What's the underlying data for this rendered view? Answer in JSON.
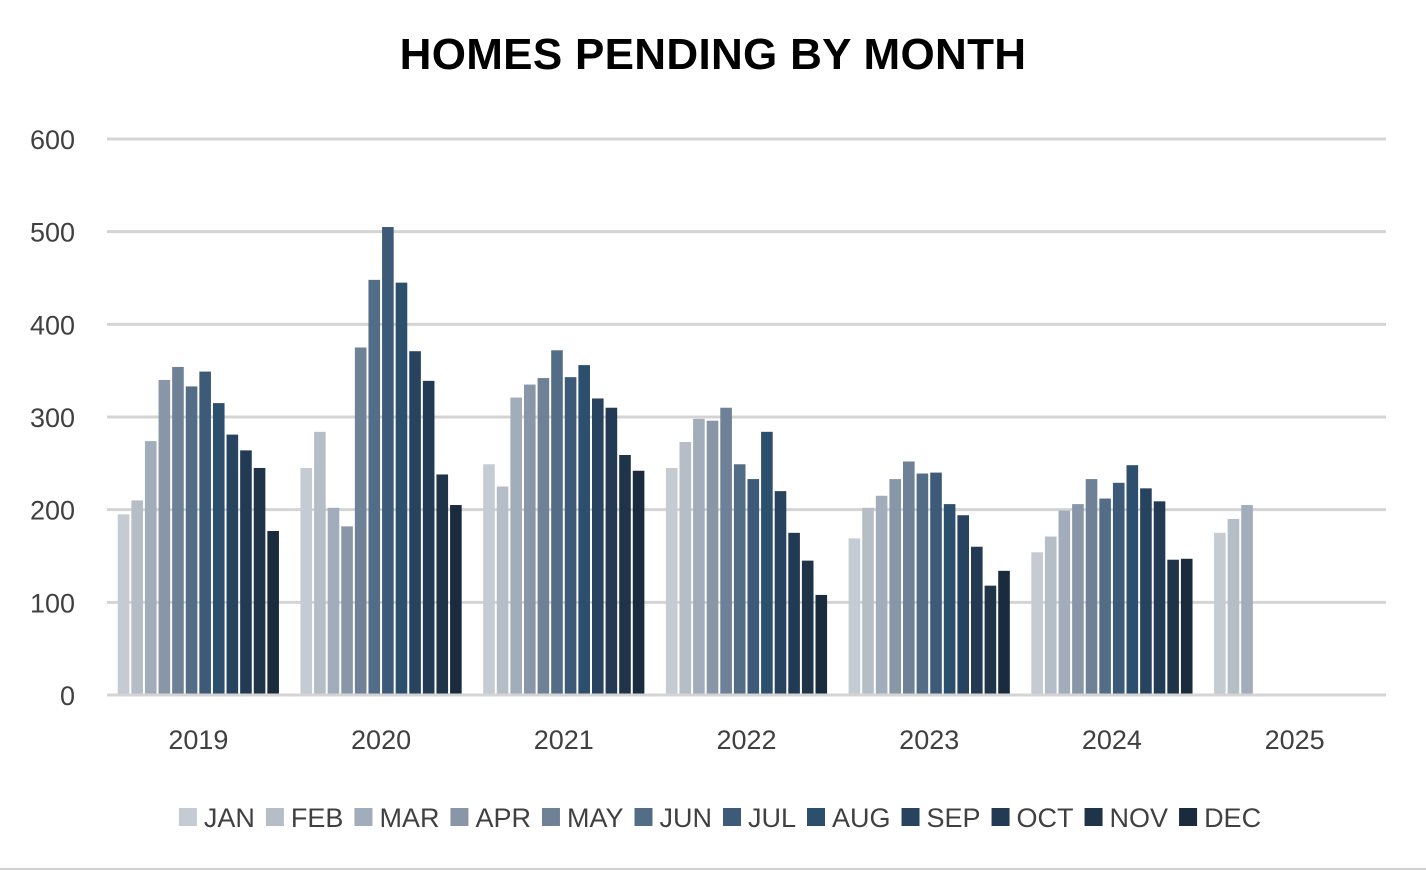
{
  "chart_data": {
    "type": "bar",
    "title": "HOMES PENDING BY MONTH",
    "xlabel": "",
    "ylabel": "",
    "ylim": [
      0,
      600
    ],
    "yticks": [
      0,
      100,
      200,
      300,
      400,
      500,
      600
    ],
    "grid": true,
    "legend_position": "bottom",
    "categories": [
      "2019",
      "2020",
      "2021",
      "2022",
      "2023",
      "2024",
      "2025"
    ],
    "series": [
      {
        "name": "JAN",
        "color": "#c5cbd2",
        "values": [
          195,
          245,
          249,
          245,
          169,
          154,
          175
        ]
      },
      {
        "name": "FEB",
        "color": "#b5bdc7",
        "values": [
          210,
          284,
          225,
          273,
          202,
          171,
          190
        ]
      },
      {
        "name": "MAR",
        "color": "#a1adba",
        "values": [
          274,
          202,
          321,
          298,
          215,
          199,
          205
        ]
      },
      {
        "name": "APR",
        "color": "#8896a8",
        "values": [
          340,
          182,
          335,
          296,
          233,
          206,
          null
        ]
      },
      {
        "name": "MAY",
        "color": "#6e8196",
        "values": [
          354,
          375,
          342,
          310,
          252,
          233,
          null
        ]
      },
      {
        "name": "JUN",
        "color": "#546d87",
        "values": [
          333,
          448,
          372,
          249,
          239,
          212,
          null
        ]
      },
      {
        "name": "JUL",
        "color": "#3d5a78",
        "values": [
          349,
          505,
          343,
          233,
          240,
          229,
          null
        ]
      },
      {
        "name": "AUG",
        "color": "#2d4f6e",
        "values": [
          315,
          445,
          356,
          284,
          206,
          248,
          null
        ]
      },
      {
        "name": "SEP",
        "color": "#28435f",
        "values": [
          281,
          371,
          320,
          220,
          194,
          223,
          null
        ]
      },
      {
        "name": "OCT",
        "color": "#233a54",
        "values": [
          264,
          339,
          310,
          175,
          160,
          209,
          null
        ]
      },
      {
        "name": "NOV",
        "color": "#1f3349",
        "values": [
          245,
          238,
          259,
          145,
          118,
          146,
          null
        ]
      },
      {
        "name": "DEC",
        "color": "#1b2b3e",
        "values": [
          177,
          205,
          242,
          108,
          134,
          147,
          null
        ]
      }
    ]
  }
}
